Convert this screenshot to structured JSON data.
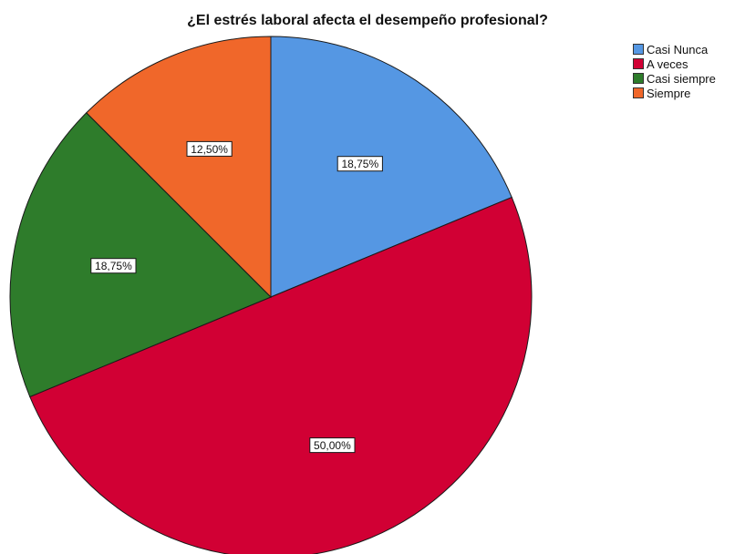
{
  "chart_data": {
    "type": "pie",
    "title": "¿El estrés laboral afecta el desempeño profesional?",
    "categories": [
      "Casi Nunca",
      "A veces",
      "Casi siempre",
      "Siempre"
    ],
    "values": [
      18.75,
      50.0,
      18.75,
      12.5
    ],
    "data_labels": [
      "18,75%",
      "50,00%",
      "18,75%",
      "12,50%"
    ],
    "colors": [
      "#5597e3",
      "#d10034",
      "#2e7c2b",
      "#f0672a"
    ],
    "start_angle_deg": 0,
    "direction": "clockwise",
    "legend_position": "top-right"
  }
}
